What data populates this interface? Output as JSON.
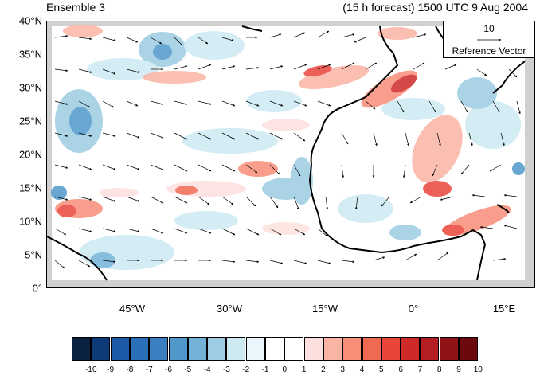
{
  "header": {
    "ensemble_label": "Ensemble 3",
    "forecast_label": "(15 h forecast) 1500 UTC 9 Aug 2004"
  },
  "map": {
    "lat_labels": [
      "40°N",
      "35°N",
      "30°N",
      "25°N",
      "20°N",
      "15°N",
      "10°N",
      "5°N",
      "0°"
    ],
    "lon_labels": [
      "45°W",
      "30°W",
      "15°W",
      "0°",
      "15°E"
    ],
    "background": "#ffffff",
    "land_mask_color": "#d0d0d0",
    "coastline_color": "#000000"
  },
  "reference_vector": {
    "magnitude": "10",
    "label": "Reference Vector"
  },
  "colorbar": {
    "tick_labels": [
      "-10",
      "-9",
      "-8",
      "-7",
      "-6",
      "-5",
      "-4",
      "-3",
      "-2",
      "-1",
      "0",
      "1",
      "2",
      "3",
      "4",
      "5",
      "6",
      "7",
      "8",
      "9",
      "10"
    ],
    "colors": [
      "#0a2240",
      "#0d3a78",
      "#1c5ba6",
      "#2a70b8",
      "#3a80c0",
      "#4f98cc",
      "#74b3d8",
      "#9ccde2",
      "#cde9f2",
      "#eaf6fb",
      "#ffffff",
      "#ffffff",
      "#fde0dd",
      "#fbb4a4",
      "#f98e78",
      "#f06a52",
      "#e9453a",
      "#cf2a2a",
      "#b51f24",
      "#8f1317",
      "#6b0a0e"
    ]
  }
}
